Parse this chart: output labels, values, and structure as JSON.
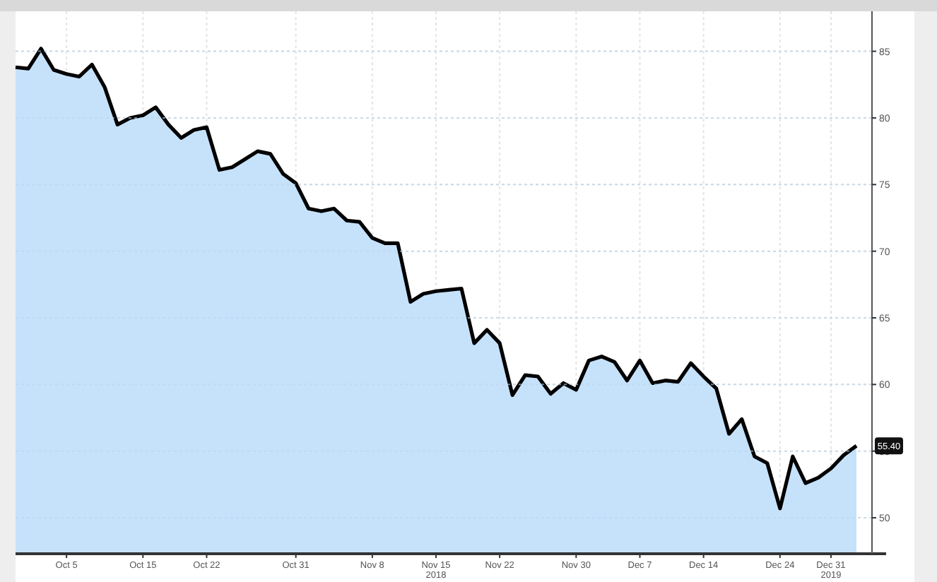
{
  "chart_data": {
    "type": "area",
    "categories": [
      null,
      null,
      null,
      null,
      "Oct 5",
      null,
      null,
      null,
      null,
      null,
      "Oct 15",
      null,
      null,
      null,
      null,
      "Oct 22",
      null,
      null,
      null,
      null,
      null,
      null,
      "Oct 31",
      null,
      null,
      null,
      null,
      null,
      "Nov 8",
      null,
      null,
      null,
      null,
      "Nov 15\n2018",
      null,
      null,
      null,
      null,
      "Nov 22",
      null,
      null,
      null,
      null,
      null,
      "Nov 30",
      null,
      null,
      null,
      null,
      "Dec 7",
      null,
      null,
      null,
      null,
      "Dec 14",
      null,
      null,
      null,
      null,
      null,
      "Dec 24",
      null,
      null,
      null,
      "Dec 31\n2019",
      null,
      null
    ],
    "series": [
      {
        "color": "#c6e2fb",
        "values": [
          83.8,
          83.7,
          85.2,
          83.6,
          83.3,
          83.1,
          84.0,
          82.3,
          79.5,
          80.0,
          80.2,
          80.8,
          79.5,
          78.5,
          79.1,
          79.3,
          76.1,
          76.3,
          76.9,
          77.5,
          77.3,
          75.8,
          75.1,
          73.2,
          73.0,
          73.2,
          72.3,
          72.2,
          71.0,
          70.6,
          70.6,
          66.2,
          66.8,
          67.0,
          67.1,
          67.2,
          63.1,
          64.1,
          63.1,
          59.2,
          60.7,
          60.6,
          59.3,
          60.1,
          59.6,
          61.8,
          62.1,
          61.7,
          60.3,
          61.8,
          60.1,
          60.3,
          60.2,
          61.6,
          60.6,
          59.7,
          56.3,
          57.4,
          54.6,
          54.1,
          50.7,
          54.6,
          52.6,
          53.0,
          53.7,
          54.7,
          55.4
        ]
      }
    ],
    "ylim": [
      47.3,
      88
    ],
    "yticks": [
      50,
      55,
      60,
      65,
      70,
      75,
      80,
      85
    ],
    "grid": true,
    "annotations": [
      {
        "text": "55.40",
        "y": 55.4
      }
    ]
  }
}
